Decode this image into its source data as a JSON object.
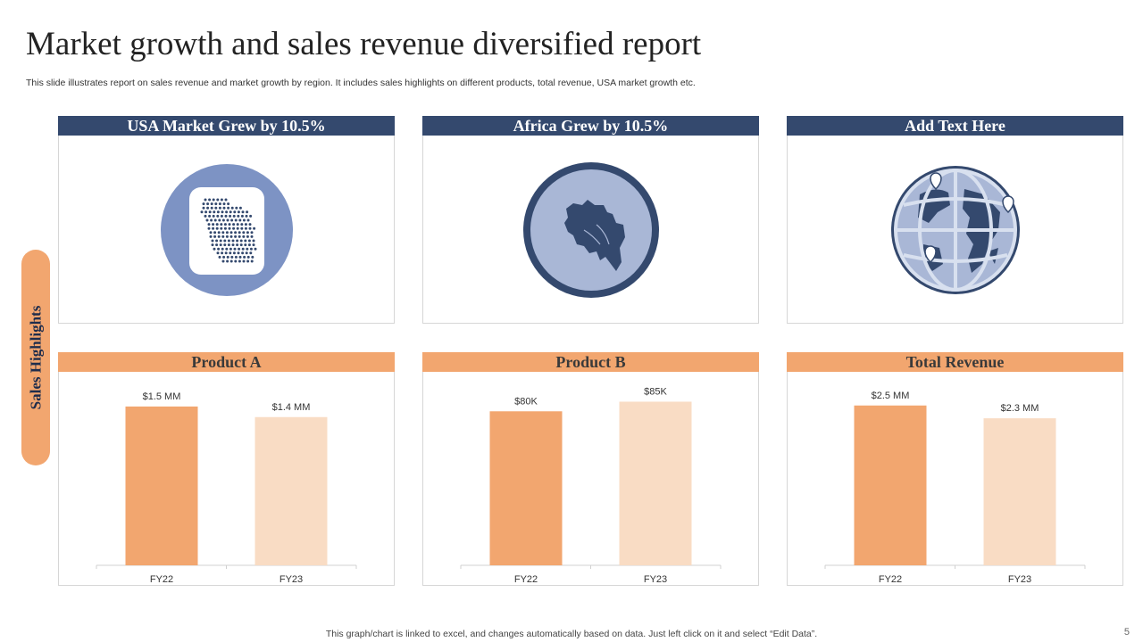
{
  "title": "Market growth and sales revenue diversified report",
  "subtitle": "This slide illustrates report on sales revenue and market growth by region. It includes sales highlights on different products, total revenue, USA market growth etc.",
  "side_tab": "Sales Highlights",
  "top_cards": [
    {
      "header": "USA Market Grew by 10.5%",
      "icon": "usa-map-icon"
    },
    {
      "header": "Africa Grew by 10.5%",
      "icon": "africa-map-icon"
    },
    {
      "header": "Add Text Here",
      "icon": "globe-icon"
    }
  ],
  "colors": {
    "navy": "#34496e",
    "orange": "#f2a66f",
    "light_orange": "#f9dcc4",
    "light_blue": "#7d93c4"
  },
  "chart_data": [
    {
      "type": "bar",
      "title": "Product A",
      "categories": [
        "FY22",
        "FY23"
      ],
      "values": [
        1.5,
        1.4
      ],
      "labels": [
        "$1.5 MM",
        "$1.4 MM"
      ],
      "ylim": [
        0,
        1.6
      ]
    },
    {
      "type": "bar",
      "title": "Product B",
      "categories": [
        "FY22",
        "FY23"
      ],
      "values": [
        80,
        85
      ],
      "labels": [
        "$80K",
        "$85K"
      ],
      "ylim": [
        0,
        88
      ]
    },
    {
      "type": "bar",
      "title": "Total Revenue",
      "categories": [
        "FY22",
        "FY23"
      ],
      "values": [
        2.5,
        2.3
      ],
      "labels": [
        "$2.5 MM",
        "$2.3 MM"
      ],
      "ylim": [
        0,
        2.65
      ]
    }
  ],
  "footer": "This graph/chart is linked to excel,  and changes automatically based on data. Just left click on it and select “Edit Data”.",
  "page_number": "5"
}
